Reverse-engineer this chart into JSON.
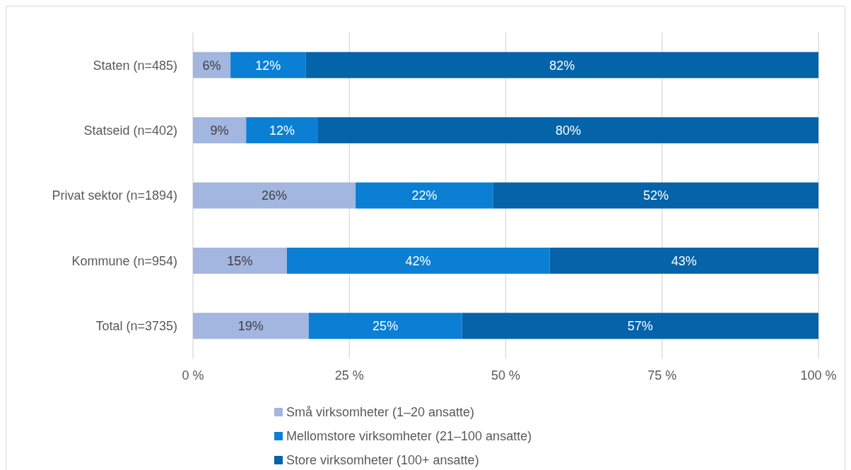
{
  "chart_data": {
    "type": "bar",
    "orientation": "horizontal",
    "stacked": true,
    "categories": [
      "Staten (n=485)",
      "Statseid (n=402)",
      "Privat sektor (n=1894)",
      "Kommune (n=954)",
      "Total (n=3735)"
    ],
    "series": [
      {
        "name": "Små virksomheter (1–20 ansatte)",
        "color": "#a3b6e0",
        "values": [
          6,
          8.5,
          26,
          15,
          18.5
        ],
        "value_labels": [
          "6%",
          "9%",
          "26%",
          "15%",
          "19%"
        ]
      },
      {
        "name": "Mellomstore virksomheter (21–100 ansatte)",
        "color": "#0a7fd3",
        "values": [
          12,
          11.5,
          22,
          42,
          24.5
        ],
        "value_labels": [
          "12%",
          "12%",
          "22%",
          "42%",
          "25%"
        ]
      },
      {
        "name": "Store virksomheter (100+ ansatte)",
        "color": "#0563a9",
        "values": [
          82,
          80,
          52,
          43,
          57
        ],
        "value_labels": [
          "82%",
          "80%",
          "52%",
          "43%",
          "57%"
        ]
      }
    ],
    "xlim": [
      0,
      100
    ],
    "xticks": [
      {
        "value": 0,
        "label": "0 %"
      },
      {
        "value": 25,
        "label": "25 %"
      },
      {
        "value": 50,
        "label": "50 %"
      },
      {
        "value": 75,
        "label": "75 %"
      },
      {
        "value": 100,
        "label": "100 %"
      }
    ],
    "grid": "x",
    "legend": "bottom"
  }
}
